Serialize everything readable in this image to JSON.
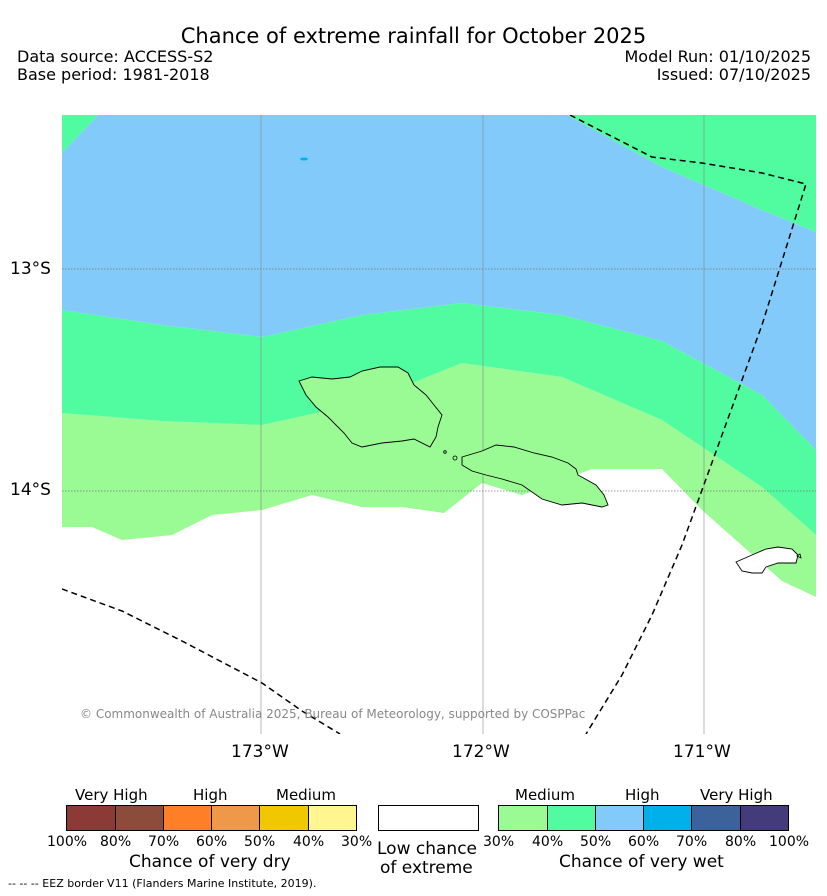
{
  "title": "Chance of extreme rainfall for October 2025",
  "meta": {
    "data_source": "Data source: ACCESS-S2",
    "base_period": "Base period: 1981-2018",
    "model_run": "Model Run: 01/10/2025",
    "issued": "Issued: 07/10/2025"
  },
  "map": {
    "lat_labels": [
      "13°S",
      "14°S"
    ],
    "lon_labels": [
      "173°W",
      "172°W",
      "171°W"
    ],
    "copyright": "© Commonwealth of Australia 2025, Bureau of Meteorology, supported by COSPPac",
    "colors": {
      "medium_wet": "#9afa94",
      "medium_wet_2": "#50fc9f",
      "high_wet": "#82cafa",
      "high_wet_2": "#00b0eb",
      "low": "#ffffff"
    }
  },
  "legend": {
    "dry": {
      "headings": [
        "Very High",
        "High",
        "Medium"
      ],
      "ticks": [
        "100%",
        "80%",
        "70%",
        "60%",
        "50%",
        "40%",
        "30%"
      ],
      "colors": [
        "#8b3a36",
        "#8b4c3c",
        "#ff7f27",
        "#f0984a",
        "#f0c800",
        "#fff690"
      ],
      "title": "Chance of very dry"
    },
    "low": {
      "line1": "Low chance",
      "line2": "of extreme",
      "color": "#ffffff"
    },
    "wet": {
      "headings": [
        "Medium",
        "High",
        "Very High"
      ],
      "ticks": [
        "30%",
        "40%",
        "50%",
        "60%",
        "70%",
        "80%",
        "100%"
      ],
      "colors": [
        "#9afa94",
        "#50fc9f",
        "#82cafa",
        "#00b0eb",
        "#3b629b",
        "#433b7a"
      ],
      "title": "Chance of very wet"
    }
  },
  "footer": "--  --  -- EEZ border V11 (Flanders Marine Institute, 2019)."
}
